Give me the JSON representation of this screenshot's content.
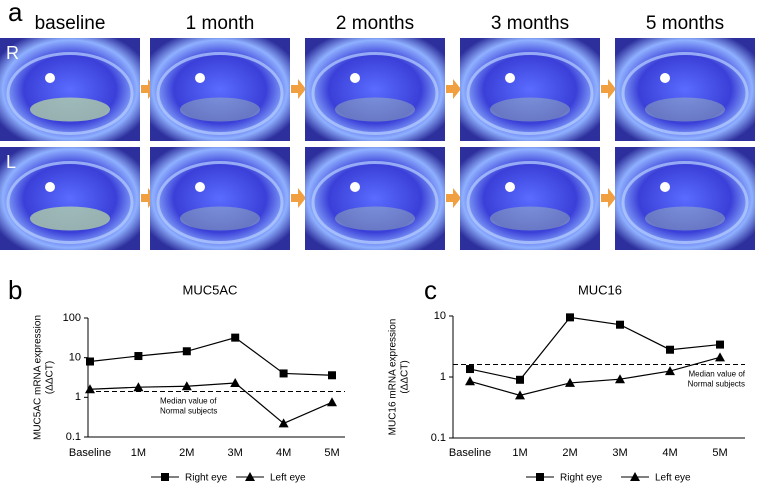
{
  "panel_labels": [
    "a",
    "b",
    "c"
  ],
  "photo_columns": [
    "baseline",
    "1 month",
    "2 months",
    "3 months",
    "5 months"
  ],
  "photo_rows": [
    "R",
    "L"
  ],
  "chart_data": [
    {
      "type": "line",
      "title": "MUC5AC",
      "y_label": [
        "MUC5AC mRNA expression",
        "(ΔΔCT)"
      ],
      "categories": [
        "Baseline",
        "1M",
        "2M",
        "3M",
        "4M",
        "5M"
      ],
      "series": [
        {
          "name": "Right eye",
          "marker": "square",
          "color": "#000000",
          "values": [
            8,
            11,
            14.5,
            32,
            4,
            3.6
          ]
        },
        {
          "name": "Left eye",
          "marker": "triangle",
          "color": "#000000",
          "values": [
            1.6,
            1.8,
            1.9,
            2.3,
            0.22,
            0.75
          ]
        }
      ],
      "log_scale": true,
      "ylim": [
        0.1,
        100
      ],
      "yticks": [
        0.1,
        1,
        10,
        100
      ],
      "median_line": 1.4,
      "annotation": [
        "Median value of",
        "Normal subjects"
      ]
    },
    {
      "type": "line",
      "title": "MUC16",
      "y_label": [
        "MUC16 mRNA expression",
        "(ΔΔCT)"
      ],
      "categories": [
        "Baseline",
        "1M",
        "2M",
        "3M",
        "4M",
        "5M"
      ],
      "series": [
        {
          "name": "Right eye",
          "marker": "square",
          "color": "#000000",
          "values": [
            1.35,
            0.9,
            9.5,
            7.2,
            2.8,
            3.4
          ]
        },
        {
          "name": "Left eye",
          "marker": "triangle",
          "color": "#000000",
          "values": [
            0.85,
            0.5,
            0.8,
            0.92,
            1.25,
            2.1
          ]
        }
      ],
      "log_scale": true,
      "ylim": [
        0.1,
        10
      ],
      "yticks": [
        0.1,
        1,
        10
      ],
      "median_line": 1.6,
      "annotation": [
        "Median value of",
        "Normal subjects"
      ]
    }
  ]
}
